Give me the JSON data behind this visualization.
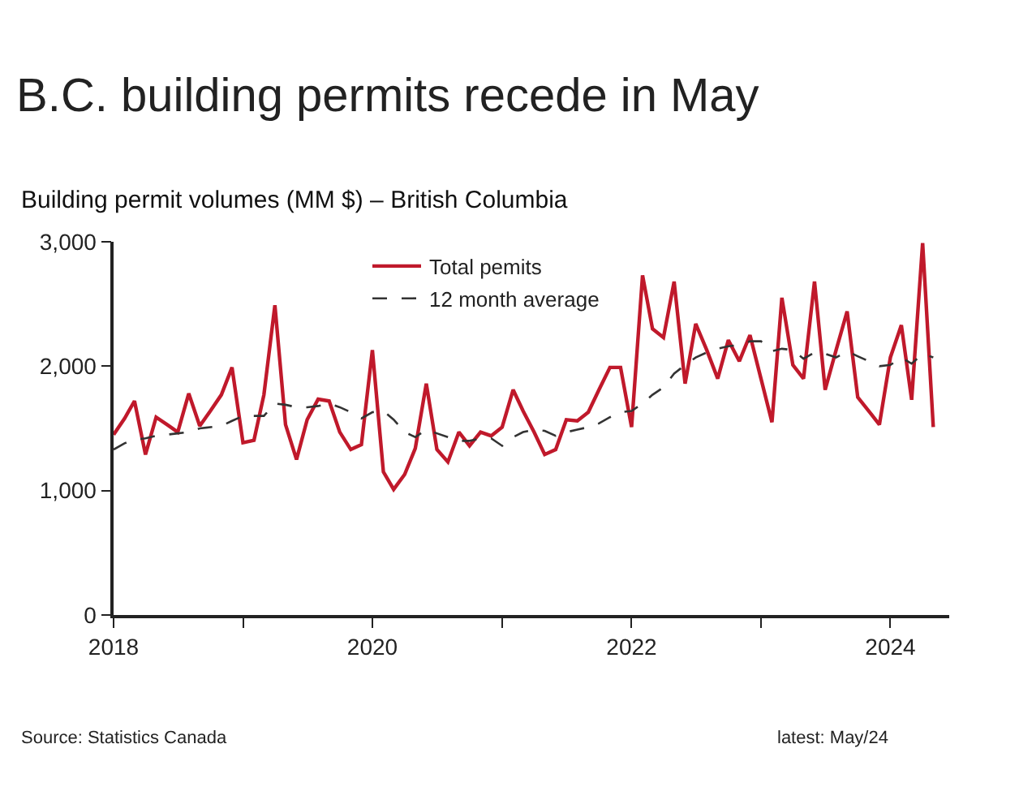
{
  "chart_data": {
    "type": "line",
    "title": "B.C. building permits recede in May",
    "subtitle": "Building permit volumes (MM $) – British Columbia",
    "x": [
      "2018-01",
      "2018-02",
      "2018-03",
      "2018-04",
      "2018-05",
      "2018-06",
      "2018-07",
      "2018-08",
      "2018-09",
      "2018-10",
      "2018-11",
      "2018-12",
      "2019-01",
      "2019-02",
      "2019-03",
      "2019-04",
      "2019-05",
      "2019-06",
      "2019-07",
      "2019-08",
      "2019-09",
      "2019-10",
      "2019-11",
      "2019-12",
      "2020-01",
      "2020-02",
      "2020-03",
      "2020-04",
      "2020-05",
      "2020-06",
      "2020-07",
      "2020-08",
      "2020-09",
      "2020-10",
      "2020-11",
      "2020-12",
      "2021-01",
      "2021-02",
      "2021-03",
      "2021-04",
      "2021-05",
      "2021-06",
      "2021-07",
      "2021-08",
      "2021-09",
      "2021-10",
      "2021-11",
      "2021-12",
      "2022-01",
      "2022-02",
      "2022-03",
      "2022-04",
      "2022-05",
      "2022-06",
      "2022-07",
      "2022-08",
      "2022-09",
      "2022-10",
      "2022-11",
      "2022-12",
      "2023-01",
      "2023-02",
      "2023-03",
      "2023-04",
      "2023-05",
      "2023-06",
      "2023-07",
      "2023-08",
      "2023-09",
      "2023-10",
      "2023-11",
      "2023-12",
      "2024-01",
      "2024-02",
      "2024-03",
      "2024-04",
      "2024-05"
    ],
    "series": [
      {
        "name": "Total pemits",
        "color": "#c0192b",
        "line_style": "solid",
        "values": [
          1450,
          1580,
          1720,
          1290,
          1590,
          1530,
          1470,
          1780,
          1520,
          1640,
          1770,
          1990,
          1385,
          1405,
          1770,
          2490,
          1530,
          1250,
          1570,
          1735,
          1720,
          1470,
          1330,
          1370,
          2130,
          1150,
          1010,
          1130,
          1340,
          1860,
          1330,
          1230,
          1470,
          1360,
          1470,
          1440,
          1510,
          1810,
          1640,
          1470,
          1290,
          1330,
          1570,
          1560,
          1630,
          1810,
          1990,
          1990,
          1510,
          2730,
          2300,
          2230,
          2680,
          1860,
          2340,
          2130,
          1900,
          2210,
          2040,
          2250,
          1900,
          1550,
          2550,
          2010,
          1900,
          2680,
          1810,
          2130,
          2440,
          1750,
          1640,
          1530,
          2070,
          2330,
          1730,
          2990,
          1510
        ]
      },
      {
        "name": "12 month average",
        "color": "#333333",
        "line_style": "dashed",
        "values": [
          1330,
          1380,
          1410,
          1420,
          1440,
          1450,
          1460,
          1470,
          1500,
          1510,
          1520,
          1560,
          1600,
          1600,
          1600,
          1700,
          1690,
          1670,
          1670,
          1680,
          1700,
          1670,
          1630,
          1580,
          1630,
          1640,
          1570,
          1470,
          1430,
          1490,
          1460,
          1430,
          1400,
          1400,
          1420,
          1420,
          1360,
          1430,
          1470,
          1490,
          1480,
          1440,
          1470,
          1490,
          1510,
          1540,
          1590,
          1630,
          1640,
          1700,
          1770,
          1830,
          1940,
          2010,
          2070,
          2110,
          2140,
          2160,
          2170,
          2200,
          2200,
          2120,
          2140,
          2130,
          2060,
          2110,
          2100,
          2070,
          2120,
          2080,
          2040,
          2000,
          2010,
          2070,
          2020,
          2100,
          2070
        ]
      }
    ],
    "xlim": [
      "2018-01-01",
      "2024-06-15"
    ],
    "xticks": [
      {
        "value": "2018",
        "label": "2018"
      },
      {
        "value": "2019",
        "label": null
      },
      {
        "value": "2020",
        "label": "2020"
      },
      {
        "value": "2021",
        "label": null
      },
      {
        "value": "2022",
        "label": "2022"
      },
      {
        "value": "2023",
        "label": null
      },
      {
        "value": "2024",
        "label": "2024"
      }
    ],
    "ylim": [
      0,
      3000
    ],
    "yticks": [
      0,
      {
        "value": 1000,
        "label": "1,000"
      },
      {
        "value": 2000,
        "label": "2,000"
      },
      {
        "value": 3000,
        "label": "3,000"
      }
    ],
    "grid": false,
    "legend": "top",
    "marker": "none",
    "annotations": [
      "Source: Statistics Canada",
      "latest: May/24"
    ]
  }
}
